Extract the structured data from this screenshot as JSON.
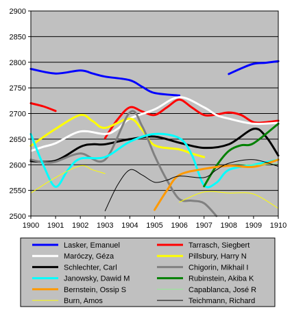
{
  "chart_data": {
    "type": "line",
    "title": "",
    "xlabel": "",
    "ylabel": "",
    "xlim": [
      1900,
      1910
    ],
    "ylim": [
      2500,
      2900
    ],
    "x_ticks": [
      "1900",
      "1901",
      "1902",
      "1903",
      "1904",
      "1905",
      "1906",
      "1907",
      "1908",
      "1909",
      "1910"
    ],
    "y_ticks": [
      "2500",
      "2550",
      "2600",
      "2650",
      "2700",
      "2750",
      "2800",
      "2850",
      "2900"
    ],
    "grid": true,
    "legend_position": "bottom",
    "plot_background": "#c0c0c0",
    "series": [
      {
        "name": "Lasker, Emanuel",
        "color": "#0000ff",
        "width": 3,
        "segments": [
          [
            [
              1900,
              2787
            ],
            [
              1901,
              2778
            ],
            [
              1902,
              2784
            ],
            [
              1902.5,
              2778
            ],
            [
              1903,
              2772
            ],
            [
              1904,
              2765
            ],
            [
              1904.5,
              2752
            ],
            [
              1905,
              2740
            ],
            [
              1906,
              2735
            ]
          ],
          [
            [
              1908,
              2777
            ],
            [
              1908.5,
              2788
            ],
            [
              1909,
              2797
            ],
            [
              1909.5,
              2799
            ],
            [
              1910,
              2802
            ]
          ]
        ]
      },
      {
        "name": "Tarrasch, Siegbert",
        "color": "#ff0000",
        "width": 3,
        "segments": [
          [
            [
              1900,
              2720
            ],
            [
              1900.5,
              2714
            ],
            [
              1901,
              2705
            ]
          ],
          [
            [
              1903,
              2652
            ],
            [
              1903.5,
              2688
            ],
            [
              1904,
              2712
            ],
            [
              1904.5,
              2704
            ],
            [
              1905,
              2697
            ],
            [
              1905.5,
              2712
            ],
            [
              1906,
              2727
            ],
            [
              1906.5,
              2712
            ],
            [
              1907,
              2697
            ],
            [
              1907.5,
              2698
            ],
            [
              1908,
              2702
            ],
            [
              1908.5,
              2697
            ],
            [
              1909,
              2683
            ],
            [
              1909.5,
              2683
            ],
            [
              1910,
              2686
            ]
          ]
        ]
      },
      {
        "name": "Maróczy, Géza",
        "color": "#ffffff",
        "width": 3,
        "segments": [
          [
            [
              1900,
              2627
            ],
            [
              1900.5,
              2635
            ],
            [
              1901,
              2642
            ],
            [
              1902,
              2665
            ],
            [
              1903,
              2660
            ],
            [
              1903.5,
              2670
            ],
            [
              1904,
              2690
            ],
            [
              1905,
              2708
            ],
            [
              1906,
              2732
            ],
            [
              1907,
              2712
            ],
            [
              1907.5,
              2697
            ],
            [
              1908,
              2690
            ],
            [
              1909,
              2680
            ],
            [
              1910,
              2682
            ]
          ]
        ]
      },
      {
        "name": "Pillsbury, Harry N",
        "color": "#ffff00",
        "width": 3,
        "segments": [
          [
            [
              1900,
              2637
            ],
            [
              1901,
              2670
            ],
            [
              1902,
              2697
            ],
            [
              1902.5,
              2685
            ],
            [
              1903,
              2672
            ],
            [
              1904,
              2690
            ],
            [
              1904.5,
              2668
            ],
            [
              1905,
              2638
            ],
            [
              1906,
              2630
            ],
            [
              1906.5,
              2622
            ],
            [
              1907,
              2615
            ]
          ]
        ]
      },
      {
        "name": "Schlechter, Carl",
        "color": "#000000",
        "width": 3,
        "segments": [
          [
            [
              1900,
              2607
            ],
            [
              1901,
              2608
            ],
            [
              1902,
              2635
            ],
            [
              1902.5,
              2640
            ],
            [
              1903,
              2640
            ],
            [
              1904,
              2650
            ],
            [
              1905,
              2655
            ],
            [
              1906,
              2643
            ],
            [
              1907,
              2633
            ],
            [
              1908,
              2640
            ],
            [
              1909,
              2670
            ],
            [
              1909.5,
              2655
            ],
            [
              1910,
              2618
            ]
          ]
        ]
      },
      {
        "name": "Chigorin, Mikhail I",
        "color": "#808080",
        "width": 3,
        "segments": [
          [
            [
              1900,
              2610
            ],
            [
              1900.5,
              2605
            ],
            [
              1901,
              2606
            ],
            [
              1902,
              2622
            ],
            [
              1903,
              2610
            ],
            [
              1904,
              2702
            ],
            [
              1904.5,
              2675
            ],
            [
              1905,
              2618
            ],
            [
              1905.5,
              2570
            ],
            [
              1906,
              2533
            ],
            [
              1906.5,
              2530
            ],
            [
              1907,
              2525
            ],
            [
              1907.5,
              2500
            ]
          ]
        ]
      },
      {
        "name": "Janowsky, Dawid M",
        "color": "#00ffff",
        "width": 3,
        "segments": [
          [
            [
              1900,
              2660
            ],
            [
              1900.5,
              2600
            ],
            [
              1901,
              2557
            ],
            [
              1901.5,
              2590
            ],
            [
              1902,
              2612
            ],
            [
              1903,
              2615
            ],
            [
              1904,
              2645
            ],
            [
              1905,
              2660
            ],
            [
              1906,
              2652
            ],
            [
              1906.5,
              2620
            ],
            [
              1907,
              2560
            ],
            [
              1907.5,
              2565
            ],
            [
              1908,
              2590
            ],
            [
              1909,
              2600
            ],
            [
              1910,
              2610
            ]
          ]
        ]
      },
      {
        "name": "Rubinstein, Akiba K",
        "color": "#008000",
        "width": 3,
        "segments": [
          [
            [
              1907,
              2558
            ],
            [
              1907.5,
              2598
            ],
            [
              1908,
              2627
            ],
            [
              1908.5,
              2638
            ],
            [
              1909,
              2642
            ],
            [
              1910,
              2680
            ]
          ]
        ]
      },
      {
        "name": "Bernstein, Ossip S",
        "color": "#ff9900",
        "width": 3,
        "segments": [
          [
            [
              1905,
              2512
            ],
            [
              1905.5,
              2550
            ],
            [
              1906,
              2580
            ],
            [
              1907,
              2592
            ],
            [
              1908,
              2598
            ],
            [
              1909,
              2596
            ],
            [
              1910,
              2610
            ]
          ]
        ]
      },
      {
        "name": "Capablanca, José R",
        "color": "#90ee90",
        "width": 1,
        "segments": [
          [
            [
              1908.3,
              2602
            ],
            [
              1909,
              2600
            ],
            [
              1910,
              2602
            ]
          ]
        ]
      },
      {
        "name": "Burn, Amos",
        "color": "#ffff00",
        "width": 1,
        "segments": [
          [
            [
              1900,
              2545
            ],
            [
              1901,
              2575
            ],
            [
              1902,
              2598
            ],
            [
              1902.5,
              2590
            ],
            [
              1903,
              2583
            ]
          ],
          [
            [
              1906,
              2527
            ],
            [
              1907,
              2547
            ],
            [
              1908,
              2545
            ],
            [
              1909,
              2543
            ],
            [
              1910,
              2515
            ]
          ]
        ]
      },
      {
        "name": "Teichmann, Richard",
        "color": "#000000",
        "width": 1,
        "segments": [
          [
            [
              1903,
              2510
            ],
            [
              1903.5,
              2560
            ],
            [
              1904,
              2590
            ],
            [
              1904.5,
              2580
            ],
            [
              1905,
              2566
            ],
            [
              1905.5,
              2570
            ],
            [
              1906,
              2578
            ],
            [
              1907,
              2575
            ],
            [
              1907.5,
              2590
            ],
            [
              1908,
              2603
            ],
            [
              1909,
              2610
            ],
            [
              1910,
              2597
            ]
          ]
        ]
      }
    ]
  }
}
